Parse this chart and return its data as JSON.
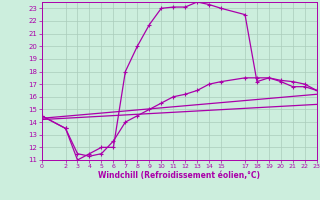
{
  "xlabel": "Windchill (Refroidissement éolien,°C)",
  "bg_color": "#cceedd",
  "grid_color": "#aaccbb",
  "line_color": "#aa00aa",
  "xlim": [
    0,
    23
  ],
  "ylim": [
    11,
    23.5
  ],
  "xticks": [
    0,
    2,
    3,
    4,
    5,
    6,
    7,
    8,
    9,
    10,
    11,
    12,
    13,
    14,
    15,
    17,
    18,
    19,
    20,
    21,
    22,
    23
  ],
  "yticks": [
    11,
    12,
    13,
    14,
    15,
    16,
    17,
    18,
    19,
    20,
    21,
    22,
    23
  ],
  "line1_x": [
    0,
    2,
    3,
    4,
    5,
    6,
    7,
    8,
    9,
    10,
    11,
    12,
    13,
    14,
    15,
    17,
    18,
    19,
    20,
    21,
    22,
    23
  ],
  "line1_y": [
    14.5,
    13.5,
    11.0,
    11.5,
    12.0,
    12.0,
    18.0,
    20.0,
    21.7,
    23.0,
    23.1,
    23.1,
    23.5,
    23.3,
    23.0,
    22.5,
    17.2,
    17.5,
    17.2,
    16.8,
    16.8,
    16.5
  ],
  "line2_x": [
    0,
    2,
    3,
    4,
    5,
    6,
    7,
    8,
    9,
    10,
    11,
    12,
    13,
    14,
    15,
    17,
    18,
    19,
    20,
    21,
    22,
    23
  ],
  "line2_y": [
    14.5,
    13.5,
    11.5,
    11.3,
    11.5,
    12.5,
    14.0,
    14.5,
    15.0,
    15.5,
    16.0,
    16.2,
    16.5,
    17.0,
    17.2,
    17.5,
    17.5,
    17.5,
    17.3,
    17.2,
    17.0,
    16.5
  ],
  "line3_x": [
    0,
    23
  ],
  "line3_y": [
    14.3,
    16.2
  ],
  "line4_x": [
    0,
    23
  ],
  "line4_y": [
    14.2,
    15.4
  ]
}
